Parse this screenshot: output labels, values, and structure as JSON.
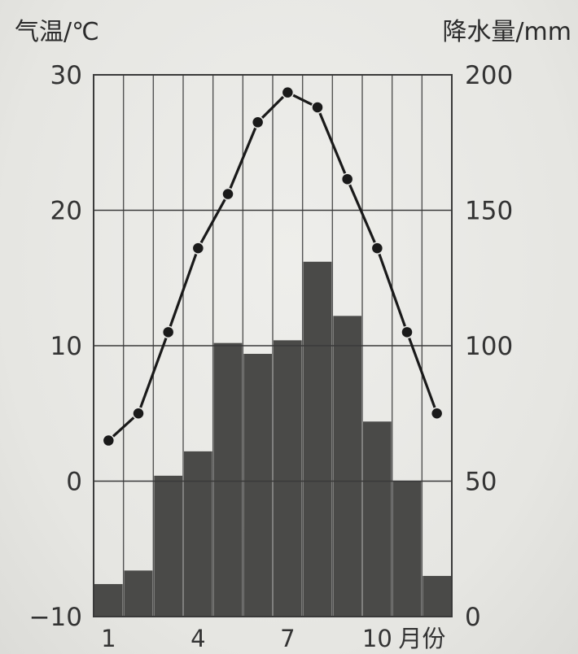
{
  "chart_data": {
    "type": "bar+line",
    "left_axis_label": "气温/℃",
    "right_axis_label": "降水量/mm",
    "x_unit_label": "月份",
    "months": [
      1,
      2,
      3,
      4,
      5,
      6,
      7,
      8,
      9,
      10,
      11,
      12
    ],
    "x_tick_labels": [
      "1",
      "4",
      "7",
      "10"
    ],
    "x_tick_months": [
      1,
      4,
      7,
      10
    ],
    "temperature_ylim": [
      -10,
      30
    ],
    "temperature_ticks": [
      "30",
      "20",
      "10",
      "0",
      "−10"
    ],
    "temperature_tick_values": [
      30,
      20,
      10,
      0,
      -10
    ],
    "precipitation_ylim": [
      0,
      200
    ],
    "precipitation_ticks": [
      "200",
      "150",
      "100",
      "50",
      "0"
    ],
    "precipitation_tick_values": [
      200,
      150,
      100,
      50,
      0
    ],
    "temperature_c": [
      3,
      5,
      11,
      17.2,
      21.2,
      26.5,
      28.7,
      27.6,
      22.3,
      17.2,
      11,
      5
    ],
    "precipitation_mm": [
      12,
      17,
      52,
      61,
      101,
      97,
      102,
      131,
      111,
      72,
      50,
      15
    ],
    "grid": true
  },
  "colors": {
    "bar_fill": "#4a4a48",
    "line": "#1a1a1a",
    "grid": "#3a3a3a",
    "background": "#e8e8e5"
  }
}
